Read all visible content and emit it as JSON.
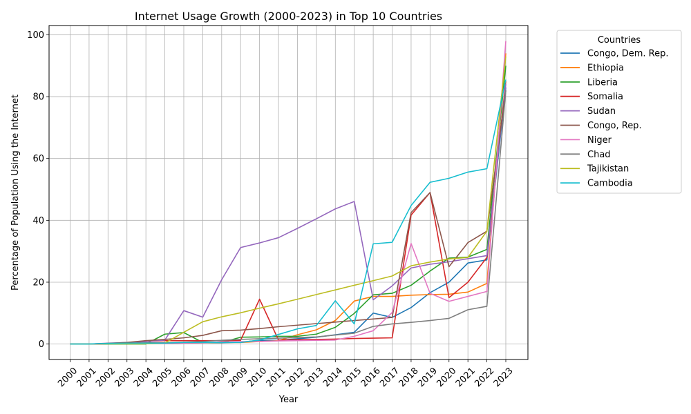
{
  "chart_data": {
    "type": "line",
    "title": "Internet Usage Growth (2000-2023) in Top 10 Countries",
    "xlabel": "Year",
    "ylabel": "Percentage of Population Using the Internet",
    "x": [
      "2000",
      "2001",
      "2002",
      "2003",
      "2004",
      "2005",
      "2006",
      "2007",
      "2008",
      "2009",
      "2010",
      "2011",
      "2012",
      "2013",
      "2014",
      "2015",
      "2016",
      "2017",
      "2018",
      "2019",
      "2020",
      "2021",
      "2022",
      "2023"
    ],
    "ylim": [
      -5,
      103
    ],
    "yticks": [
      0,
      20,
      40,
      60,
      80,
      100
    ],
    "grid": true,
    "legend": {
      "title": "Countries",
      "placement": "outside-right"
    },
    "series": [
      {
        "name": "Congo, Dem. Rep.",
        "color": "#1f77b4",
        "values": [
          0.0,
          0.0,
          0.1,
          0.1,
          0.2,
          0.2,
          0.3,
          0.4,
          0.4,
          0.6,
          1.2,
          1.2,
          1.7,
          2.2,
          3.0,
          3.8,
          10.0,
          8.6,
          11.8,
          16.6,
          20.0,
          26.2,
          27.2,
          83.0
        ]
      },
      {
        "name": "Ethiopia",
        "color": "#ff7f0e",
        "values": [
          0.0,
          0.0,
          0.1,
          0.1,
          0.2,
          0.2,
          0.3,
          0.4,
          0.5,
          0.5,
          0.8,
          1.1,
          3.0,
          4.6,
          7.6,
          13.9,
          15.4,
          15.4,
          15.8,
          16.0,
          16.1,
          16.8,
          19.6,
          94.0
        ]
      },
      {
        "name": "Liberia",
        "color": "#2ca02c",
        "values": [
          0.0,
          0.0,
          0.0,
          0.0,
          0.0,
          3.2,
          3.7,
          0.5,
          0.5,
          2.2,
          2.3,
          2.5,
          2.5,
          3.2,
          5.4,
          9.9,
          15.9,
          16.4,
          19.0,
          23.6,
          27.8,
          28.1,
          30.6,
          90.0
        ]
      },
      {
        "name": "Somalia",
        "color": "#d62728",
        "values": [
          0.0,
          0.0,
          0.1,
          0.3,
          0.8,
          1.1,
          1.1,
          1.1,
          1.1,
          1.2,
          14.5,
          1.3,
          1.4,
          1.5,
          1.6,
          1.8,
          1.9,
          2.0,
          41.7,
          49.0,
          15.0,
          20.0,
          28.0,
          85.0
        ]
      },
      {
        "name": "Sudan",
        "color": "#9467bd",
        "values": [
          0.0,
          0.0,
          0.3,
          0.5,
          0.8,
          1.3,
          10.8,
          8.7,
          20.8,
          31.2,
          32.7,
          34.4,
          37.4,
          40.5,
          43.7,
          46.1,
          14.3,
          18.8,
          24.6,
          25.8,
          26.6,
          27.6,
          28.6,
          84.0
        ]
      },
      {
        "name": "Congo, Rep.",
        "color": "#8c564b",
        "values": [
          0.0,
          0.0,
          0.2,
          0.5,
          1.1,
          1.5,
          2.0,
          2.8,
          4.3,
          4.5,
          5.0,
          5.6,
          6.1,
          6.6,
          7.1,
          7.6,
          8.1,
          8.6,
          42.5,
          49.0,
          25.0,
          32.8,
          36.5,
          82.0
        ]
      },
      {
        "name": "Niger",
        "color": "#e377c2",
        "values": [
          0.0,
          0.0,
          0.1,
          0.2,
          0.2,
          0.2,
          0.3,
          0.4,
          0.7,
          0.8,
          0.8,
          1.0,
          1.1,
          1.2,
          1.3,
          2.5,
          4.3,
          10.2,
          32.5,
          16.4,
          13.8,
          15.4,
          17.0,
          98.0
        ]
      },
      {
        "name": "Chad",
        "color": "#7f7f7f",
        "values": [
          0.0,
          0.0,
          0.2,
          0.3,
          0.4,
          0.4,
          0.6,
          0.8,
          1.2,
          1.5,
          1.7,
          1.9,
          2.1,
          2.3,
          2.9,
          3.5,
          5.7,
          6.5,
          7.0,
          7.6,
          8.3,
          11.1,
          12.2,
          82.0
        ]
      },
      {
        "name": "Tajikistan",
        "color": "#bcbd22",
        "values": [
          0.0,
          0.0,
          0.1,
          0.1,
          0.1,
          0.3,
          3.8,
          7.2,
          8.8,
          10.1,
          11.6,
          13.0,
          14.5,
          16.0,
          17.5,
          19.0,
          20.5,
          22.0,
          25.3,
          26.5,
          27.5,
          28.0,
          36.5,
          93.0
        ]
      },
      {
        "name": "Cambodia",
        "color": "#17becf",
        "values": [
          0.0,
          0.0,
          0.2,
          0.3,
          0.3,
          0.3,
          0.5,
          0.5,
          0.5,
          0.5,
          1.3,
          3.1,
          4.9,
          6.0,
          14.0,
          6.5,
          32.4,
          32.9,
          44.8,
          52.3,
          53.6,
          55.6,
          56.7,
          85.5
        ]
      }
    ]
  }
}
